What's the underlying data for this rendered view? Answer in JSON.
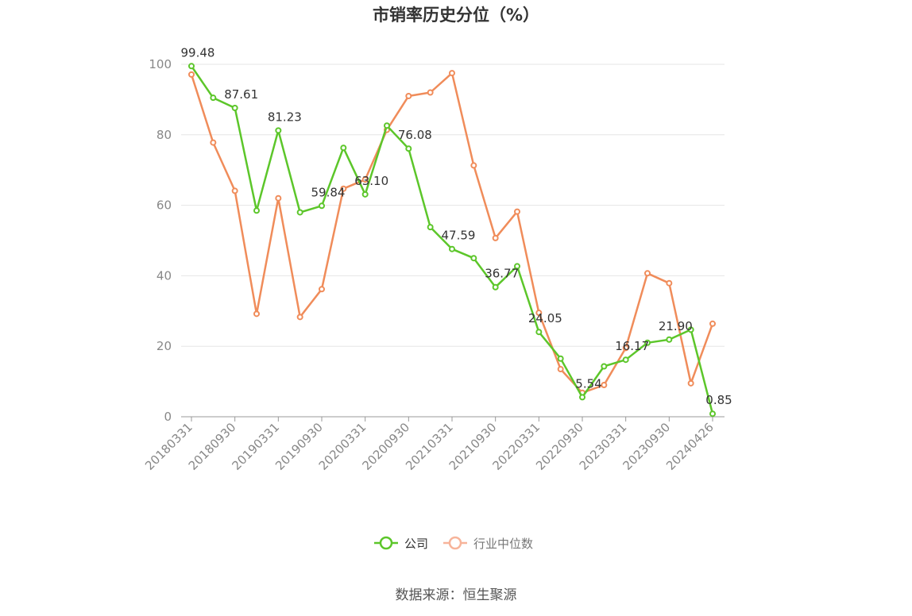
{
  "chart_data": {
    "type": "line",
    "title": "市销率历史分位（%）",
    "source": "数据来源：恒生聚源",
    "ylim": [
      0,
      100
    ],
    "yticks": [
      0,
      20,
      40,
      60,
      80,
      100
    ],
    "x": [
      "20180331",
      "20180630",
      "20180930",
      "20181231",
      "20190331",
      "20190630",
      "20190930",
      "20191231",
      "20200331",
      "20200630",
      "20200930",
      "20201231",
      "20210331",
      "20210630",
      "20210930",
      "20211231",
      "20220331",
      "20220630",
      "20220930",
      "20221231",
      "20230331",
      "20230630",
      "20230930",
      "20231231",
      "20240426"
    ],
    "xtick_labels": [
      "20180331",
      "20180930",
      "20190331",
      "20190930",
      "20200331",
      "20200930",
      "20210331",
      "20210930",
      "20220331",
      "20220930",
      "20230331",
      "20230930",
      "20240426"
    ],
    "xtick_indices": [
      0,
      2,
      4,
      6,
      8,
      10,
      12,
      14,
      16,
      18,
      20,
      22,
      24
    ],
    "series": [
      {
        "name": "公司",
        "color": "#5cc62a",
        "values": [
          99.48,
          90.5,
          87.61,
          58.5,
          81.23,
          58.0,
          59.84,
          76.3,
          63.1,
          82.6,
          76.08,
          53.8,
          47.59,
          45.0,
          36.77,
          42.7,
          24.05,
          16.5,
          5.54,
          14.3,
          16.17,
          21.0,
          21.9,
          24.7,
          0.85
        ]
      },
      {
        "name": "行业中位数",
        "color": "#f08c5a",
        "values": [
          97.1,
          77.8,
          64.1,
          29.2,
          62.0,
          28.3,
          36.2,
          64.7,
          67.3,
          81.4,
          91.0,
          92.0,
          97.5,
          71.3,
          50.7,
          58.2,
          29.5,
          13.5,
          6.8,
          9.0,
          19.5,
          40.7,
          37.9,
          9.5,
          26.4
        ]
      }
    ],
    "data_labels": [
      {
        "index": 0,
        "text": "99.48"
      },
      {
        "index": 2,
        "text": "87.61"
      },
      {
        "index": 4,
        "text": "81.23"
      },
      {
        "index": 6,
        "text": "59.84"
      },
      {
        "index": 8,
        "text": "63.10"
      },
      {
        "index": 10,
        "text": "76.08"
      },
      {
        "index": 12,
        "text": "47.59"
      },
      {
        "index": 14,
        "text": "36.77"
      },
      {
        "index": 16,
        "text": "24.05"
      },
      {
        "index": 18,
        "text": "5.54"
      },
      {
        "index": 20,
        "text": "16.17"
      },
      {
        "index": 22,
        "text": "21.90"
      },
      {
        "index": 24,
        "text": "0.85"
      }
    ],
    "legend_position": "bottom-center",
    "legend_series_colors": [
      "#5cc62a",
      "#f7b49a"
    ],
    "grid": "horizontal"
  }
}
